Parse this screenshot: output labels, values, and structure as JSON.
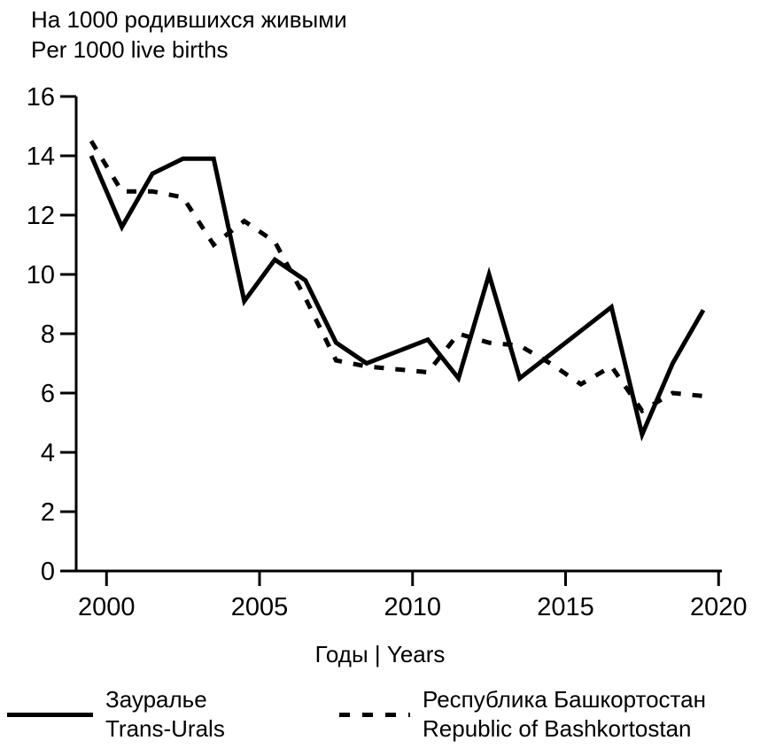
{
  "title": {
    "line1": "На 1000 родившихся живыми",
    "line2": "Per 1000 live births"
  },
  "x_axis_label": "Годы | Years",
  "legend": {
    "items": [
      {
        "label_ru": "Зауралье",
        "label_en": "Trans-Urals",
        "style": "solid"
      },
      {
        "label_ru": "Республика Башкортостан",
        "label_en": "Republic of Bashkortostan",
        "style": "dashed"
      }
    ]
  },
  "colors": {
    "line": "#000000",
    "text": "#000000",
    "background": "#ffffff"
  },
  "chart_data": {
    "type": "line",
    "title": "На 1000 родившихся живыми | Per 1000 live births",
    "xlabel": "Годы | Years",
    "ylabel": "",
    "ylim": [
      0,
      16
    ],
    "yticks": [
      0,
      2,
      4,
      6,
      8,
      10,
      12,
      14,
      16
    ],
    "xticks": [
      2000,
      2005,
      2010,
      2015,
      2020
    ],
    "grid": false,
    "legend_position": "bottom",
    "x": [
      1999,
      2000,
      2001,
      2002,
      2003,
      2004,
      2005,
      2006,
      2007,
      2008,
      2009,
      2010,
      2011,
      2012,
      2013,
      2014,
      2015,
      2016,
      2017,
      2018,
      2019
    ],
    "series": [
      {
        "name": "Зауралье | Trans-Urals",
        "style": "solid",
        "values": [
          14.0,
          11.6,
          13.4,
          13.9,
          13.9,
          9.1,
          10.5,
          9.8,
          7.7,
          7.0,
          7.4,
          7.8,
          6.5,
          10.0,
          6.5,
          7.3,
          8.1,
          8.9,
          4.6,
          7.0,
          8.8
        ]
      },
      {
        "name": "Республика Башкортостан | Republic of Bashkortostan",
        "style": "dashed",
        "values": [
          14.5,
          12.8,
          12.8,
          12.6,
          11.0,
          11.8,
          11.1,
          9.2,
          7.1,
          6.9,
          6.8,
          6.7,
          8.0,
          7.7,
          7.6,
          7.0,
          6.3,
          6.9,
          5.4,
          6.0,
          5.9
        ]
      }
    ]
  }
}
